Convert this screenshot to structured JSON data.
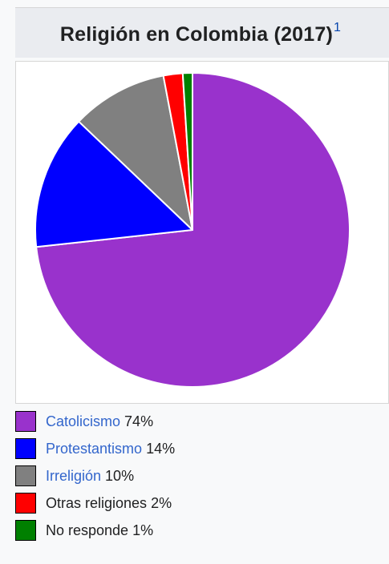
{
  "infobox": {
    "title": "Religión en Colombia (2017)",
    "footnote": "1"
  },
  "chart_data": {
    "type": "pie",
    "title": "Religión en Colombia (2017)",
    "categories": [
      "Catolicismo",
      "Protestantismo",
      "Irreligión",
      "Otras religiones",
      "No responde"
    ],
    "values": [
      74,
      14,
      10,
      2,
      1
    ],
    "unit": "%",
    "colors": [
      "#9932cc",
      "#0000ff",
      "#808080",
      "#ff0000",
      "#008000"
    ],
    "start": "12 o'clock, clockwise",
    "slice_border_color": "#ffffff",
    "legend_placement": "bottom"
  },
  "legend": [
    {
      "label": "Catolicismo",
      "value": "74%",
      "linked": true
    },
    {
      "label": "Protestantismo",
      "value": "14%",
      "linked": true
    },
    {
      "label": "Irreligión",
      "value": "10%",
      "linked": true
    },
    {
      "label": "Otras religiones",
      "value": "2%",
      "linked": false
    },
    {
      "label": "No responde",
      "value": "1%",
      "linked": false
    }
  ]
}
